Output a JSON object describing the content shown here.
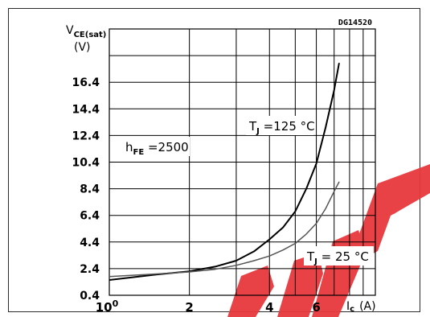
{
  "chart_data": {
    "type": "line",
    "title": "",
    "reference": "DG14520",
    "ylabel": {
      "main": "V",
      "sub": "CE(sat)",
      "unit": "(V)"
    },
    "xlabel": {
      "main": "I",
      "sub": "c",
      "unit": "(A)"
    },
    "x_scale": "log",
    "xlim": [
      1,
      10
    ],
    "ylim": [
      0.4,
      20.4
    ],
    "grid": true,
    "y_ticks": [
      {
        "value": 0.4,
        "label": "0.4"
      },
      {
        "value": 2.4,
        "label": "2.4"
      },
      {
        "value": 4.4,
        "label": "4.4"
      },
      {
        "value": 6.4,
        "label": "6.4"
      },
      {
        "value": 8.4,
        "label": "8.4"
      },
      {
        "value": 10.4,
        "label": "10.4"
      },
      {
        "value": 12.4,
        "label": "12.4"
      },
      {
        "value": 14.4,
        "label": "14.4"
      },
      {
        "value": 16.4,
        "label": "16.4"
      }
    ],
    "x_ticks": [
      {
        "value": 1,
        "base": "10",
        "exp": "0"
      },
      {
        "value": 2,
        "label": "2"
      },
      {
        "value": 4,
        "label": "4"
      },
      {
        "value": 6,
        "label": "6"
      }
    ],
    "annotations": [
      {
        "main": "h",
        "sub": "FE",
        "rest": " =2500"
      },
      {
        "main": "T",
        "sub": "J",
        "rest": " =125 °C"
      },
      {
        "main": "T",
        "sub": "J",
        "rest": " = 25 °C"
      }
    ],
    "series": [
      {
        "name": "TJ=125°C",
        "color": "#000000",
        "x": [
          1.0,
          1.5,
          2.0,
          2.5,
          3.0,
          3.5,
          4.0,
          4.5,
          5.0,
          5.5,
          6.0,
          6.5,
          7.0,
          7.3
        ],
        "y": [
          1.55,
          1.95,
          2.2,
          2.55,
          3.0,
          3.7,
          4.6,
          5.5,
          6.7,
          8.4,
          10.3,
          13.0,
          15.8,
          17.8
        ]
      },
      {
        "name": "TJ=25°C",
        "color": "#555555",
        "x": [
          1.0,
          1.5,
          2.0,
          2.5,
          3.0,
          3.5,
          4.0,
          4.5,
          5.0,
          5.5,
          6.0,
          6.5,
          7.0,
          7.3
        ],
        "y": [
          1.8,
          2.0,
          2.15,
          2.35,
          2.65,
          3.0,
          3.35,
          3.8,
          4.3,
          5.0,
          5.8,
          6.9,
          8.2,
          8.9
        ]
      }
    ]
  },
  "colors": {
    "grid": "#000000",
    "frame": "#2b2b2b",
    "watermark": "#e8383d"
  }
}
